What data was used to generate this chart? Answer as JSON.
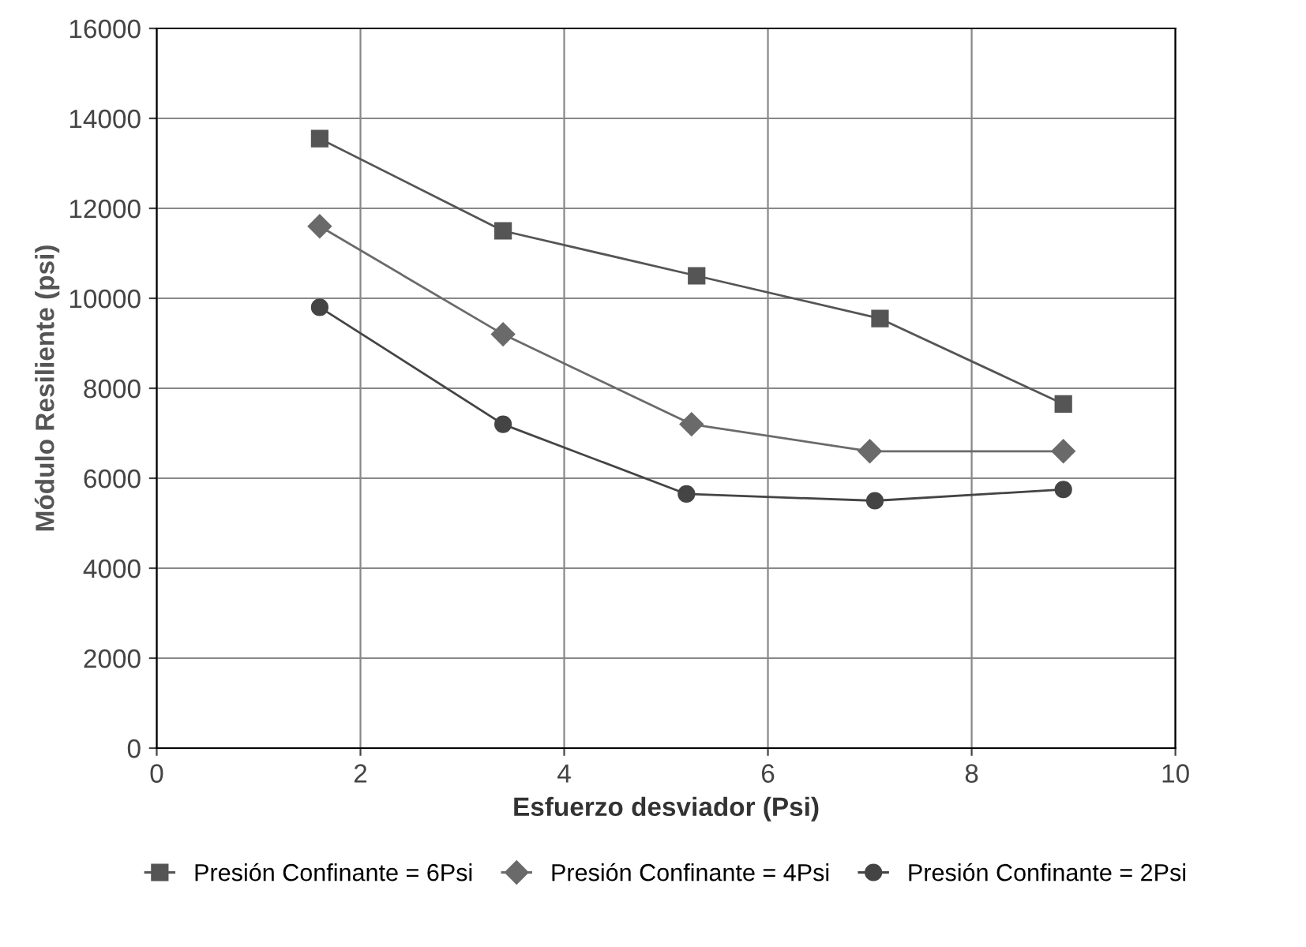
{
  "chart_data": {
    "type": "line",
    "xlabel": "Esfuerzo desviador (Psi)",
    "ylabel": "Módulo Resiliente (psi)",
    "xlim": [
      0,
      10
    ],
    "xticks": [
      0,
      2,
      4,
      6,
      8,
      10
    ],
    "ylim": [
      0,
      16000
    ],
    "yticks": [
      0,
      2000,
      4000,
      6000,
      8000,
      10000,
      12000,
      14000,
      16000
    ],
    "grid": true,
    "legend": "bottom",
    "series": [
      {
        "name": "Presión Confinante = 6Psi",
        "color": "#555555",
        "marker": "square",
        "x": [
          1.6,
          3.4,
          5.3,
          7.1,
          8.9
        ],
        "values": [
          13550,
          11500,
          10500,
          9550,
          7650
        ]
      },
      {
        "name": "Presión Confinante = 4Psi",
        "color": "#6a6a6a",
        "marker": "diamond",
        "x": [
          1.6,
          3.4,
          5.25,
          7.0,
          8.9
        ],
        "values": [
          11600,
          9200,
          7200,
          6600,
          6600
        ]
      },
      {
        "name": "Presión Confinante = 2Psi",
        "color": "#444444",
        "marker": "circle",
        "x": [
          1.6,
          3.4,
          5.2,
          7.05,
          8.9
        ],
        "values": [
          9800,
          7200,
          5650,
          5500,
          5750
        ]
      }
    ]
  }
}
